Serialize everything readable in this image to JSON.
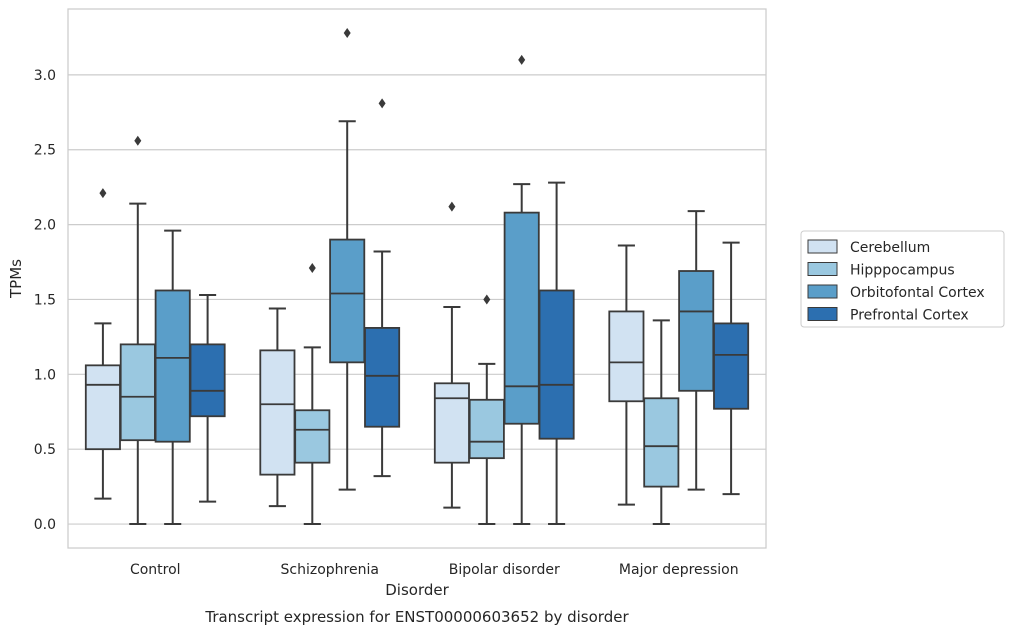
{
  "chart_data": {
    "type": "boxplot",
    "title": "",
    "caption": "Transcript expression for ENST00000603652 by disorder",
    "xlabel": "Disorder",
    "ylabel": "TPMs",
    "ylim": [
      -0.16,
      3.44
    ],
    "yticks": [
      "0.0",
      "0.5",
      "1.0",
      "1.5",
      "2.0",
      "2.5",
      "3.0"
    ],
    "ytick_values": [
      0,
      0.5,
      1.0,
      1.5,
      2.0,
      2.5,
      3.0
    ],
    "grid": "horizontal",
    "legend_position": "right",
    "categories": [
      "Control",
      "Schizophrenia",
      "Bipolar disorder",
      "Major depression"
    ],
    "series": [
      {
        "name": "Cerebellum",
        "color": "#d1e2f2",
        "boxes": [
          {
            "whislo": 0.17,
            "q1": 0.5,
            "med": 0.93,
            "q3": 1.06,
            "whishi": 1.34,
            "fliers": [
              2.21
            ]
          },
          {
            "whislo": 0.12,
            "q1": 0.33,
            "med": 0.8,
            "q3": 1.16,
            "whishi": 1.44,
            "fliers": []
          },
          {
            "whislo": 0.11,
            "q1": 0.41,
            "med": 0.84,
            "q3": 0.94,
            "whishi": 1.45,
            "fliers": [
              2.12
            ]
          },
          {
            "whislo": 0.13,
            "q1": 0.82,
            "med": 1.08,
            "q3": 1.42,
            "whishi": 1.86,
            "fliers": []
          }
        ]
      },
      {
        "name": "Hipppocampus",
        "color": "#9ac8e0",
        "boxes": [
          {
            "whislo": 0.0,
            "q1": 0.56,
            "med": 0.85,
            "q3": 1.2,
            "whishi": 2.14,
            "fliers": [
              2.56
            ]
          },
          {
            "whislo": 0.0,
            "q1": 0.41,
            "med": 0.63,
            "q3": 0.76,
            "whishi": 1.18,
            "fliers": [
              1.71
            ]
          },
          {
            "whislo": 0.0,
            "q1": 0.44,
            "med": 0.55,
            "q3": 0.83,
            "whishi": 1.07,
            "fliers": [
              1.5
            ]
          },
          {
            "whislo": 0.0,
            "q1": 0.25,
            "med": 0.52,
            "q3": 0.84,
            "whishi": 1.36,
            "fliers": []
          }
        ]
      },
      {
        "name": "Orbitofontal Cortex",
        "color": "#5a9ec9",
        "boxes": [
          {
            "whislo": 0.0,
            "q1": 0.55,
            "med": 1.11,
            "q3": 1.56,
            "whishi": 1.96,
            "fliers": []
          },
          {
            "whislo": 0.23,
            "q1": 1.08,
            "med": 1.54,
            "q3": 1.9,
            "whishi": 2.69,
            "fliers": [
              3.28
            ]
          },
          {
            "whislo": 0.0,
            "q1": 0.67,
            "med": 0.92,
            "q3": 2.08,
            "whishi": 2.27,
            "fliers": [
              3.1
            ]
          },
          {
            "whislo": 0.23,
            "q1": 0.89,
            "med": 1.42,
            "q3": 1.69,
            "whishi": 2.09,
            "fliers": []
          }
        ]
      },
      {
        "name": "Prefrontal Cortex",
        "color": "#2c6fb0",
        "boxes": [
          {
            "whislo": 0.15,
            "q1": 0.72,
            "med": 0.89,
            "q3": 1.2,
            "whishi": 1.53,
            "fliers": []
          },
          {
            "whislo": 0.32,
            "q1": 0.65,
            "med": 0.99,
            "q3": 1.31,
            "whishi": 1.82,
            "fliers": [
              2.81
            ]
          },
          {
            "whislo": 0.0,
            "q1": 0.57,
            "med": 0.93,
            "q3": 1.56,
            "whishi": 2.28,
            "fliers": []
          },
          {
            "whislo": 0.2,
            "q1": 0.77,
            "med": 1.13,
            "q3": 1.34,
            "whishi": 1.88,
            "fliers": []
          }
        ]
      }
    ]
  },
  "style": {
    "grid_color": "#cccccc",
    "frame_color": "#cccccc",
    "line_color": "#3a3a3a"
  }
}
